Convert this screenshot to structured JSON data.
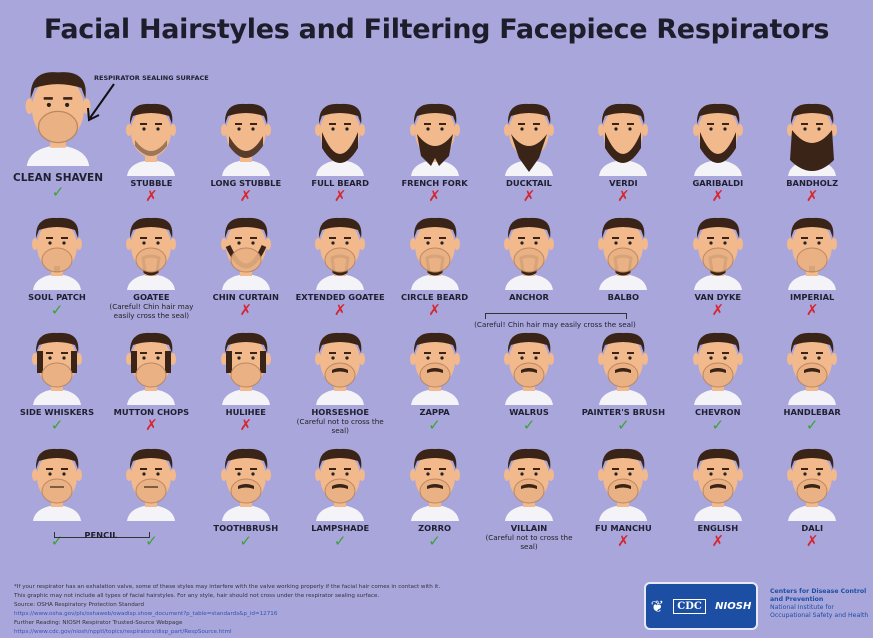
{
  "title": "Facial Hairstyles and Filtering Facepiece Respirators",
  "clean_shaven": {
    "label": "CLEAN SHAVEN",
    "status": "ok",
    "sealing_label": "RESPIRATOR SEALING SURFACE"
  },
  "rows": [
    [
      {
        "label": "STUBBLE",
        "status": "no",
        "beard": "stubble"
      },
      {
        "label": "LONG STUBBLE",
        "status": "no",
        "beard": "stubble2"
      },
      {
        "label": "FULL BEARD",
        "status": "no",
        "beard": "full"
      },
      {
        "label": "FRENCH FORK",
        "status": "no",
        "beard": "fork"
      },
      {
        "label": "DUCKTAIL",
        "status": "no",
        "beard": "duck"
      },
      {
        "label": "VERDI",
        "status": "no",
        "beard": "full"
      },
      {
        "label": "GARIBALDI",
        "status": "no",
        "beard": "full"
      },
      {
        "label": "BANDHOLZ",
        "status": "no",
        "beard": "big"
      }
    ],
    [
      {
        "label": "SOUL PATCH",
        "status": "ok",
        "beard": "soul"
      },
      {
        "label": "GOATEE",
        "status": "",
        "beard": "goatee",
        "note": "(Careful! Chin hair may easily cross the seal)"
      },
      {
        "label": "CHIN CURTAIN",
        "status": "no",
        "beard": "curtain"
      },
      {
        "label": "EXTENDED GOATEE",
        "status": "no",
        "beard": "goatee"
      },
      {
        "label": "CIRCLE BEARD",
        "status": "no",
        "beard": "goatee"
      },
      {
        "label": "ANCHOR",
        "status": "",
        "beard": "goatee"
      },
      {
        "label": "BALBO",
        "status": "",
        "beard": "goatee"
      },
      {
        "label": "VAN DYKE",
        "status": "no",
        "beard": "goatee"
      },
      {
        "label": "IMPERIAL",
        "status": "no",
        "beard": "soul"
      }
    ],
    [
      {
        "label": "SIDE WHISKERS",
        "status": "ok",
        "beard": "side"
      },
      {
        "label": "MUTTON CHOPS",
        "status": "no",
        "beard": "side"
      },
      {
        "label": "HULIHEE",
        "status": "no",
        "beard": "side"
      },
      {
        "label": "HORSESHOE",
        "status": "",
        "beard": "mous",
        "note": "(Careful not to cross the seal)"
      },
      {
        "label": "ZAPPA",
        "status": "ok",
        "beard": "mous"
      },
      {
        "label": "WALRUS",
        "status": "ok",
        "beard": "mous"
      },
      {
        "label": "PAINTER'S BRUSH",
        "status": "ok",
        "beard": "mous"
      },
      {
        "label": "CHEVRON",
        "status": "ok",
        "beard": "mous"
      },
      {
        "label": "HANDLEBAR",
        "status": "ok",
        "beard": "mous"
      }
    ],
    [
      {
        "label": "",
        "status": "ok",
        "beard": "pencil"
      },
      {
        "label": "",
        "status": "ok",
        "beard": "pencil"
      },
      {
        "label": "TOOTHBRUSH",
        "status": "ok",
        "beard": "mous"
      },
      {
        "label": "LAMPSHADE",
        "status": "ok",
        "beard": "mous"
      },
      {
        "label": "ZORRO",
        "status": "ok",
        "beard": "mous"
      },
      {
        "label": "VILLAIN",
        "status": "",
        "beard": "mous",
        "note": "(Careful not to cross the seal)"
      },
      {
        "label": "FU MANCHU",
        "status": "no",
        "beard": "mous"
      },
      {
        "label": "ENGLISH",
        "status": "no",
        "beard": "mous"
      },
      {
        "label": "DALI",
        "status": "no",
        "beard": "mous"
      }
    ]
  ],
  "shared": {
    "anchor_balbo_note": "(Careful! Chin hair may easily cross the seal)",
    "pencil_label": "PENCIL"
  },
  "marks": {
    "ok": "✓",
    "no": "✗"
  },
  "colors": {
    "ok": "#3aa335",
    "no": "#d6262f",
    "background": "#a9a6dc",
    "brand": "#1c4fa3"
  },
  "footer": {
    "lines": [
      "*If your respirator has an exhalation valve, some of these styles may interfere with the valve working properly if the facial hair comes in contact with it.",
      "This graphic may not include all types of facial hairstyles. For any style, hair should not cross under the respirator sealing surface."
    ],
    "source": "Source: OSHA Respiratory Protection Standard",
    "source_url": "https://www.osha.gov/pls/oshaweb/owadisp.show_document?p_table=standards&p_id=12716",
    "further": "Further Reading: NIOSH Respirator Trusted-Source Webpage",
    "further_url": "https://www.cdc.gov/niosh/npptl/topics/respirators/disp_part/RespSource.html"
  },
  "logo": {
    "cdc": "CDC",
    "niosh": "NIOSH",
    "org1": "Centers for Disease Control and Prevention",
    "org2": "National Institute for Occupational Safety and Health"
  }
}
